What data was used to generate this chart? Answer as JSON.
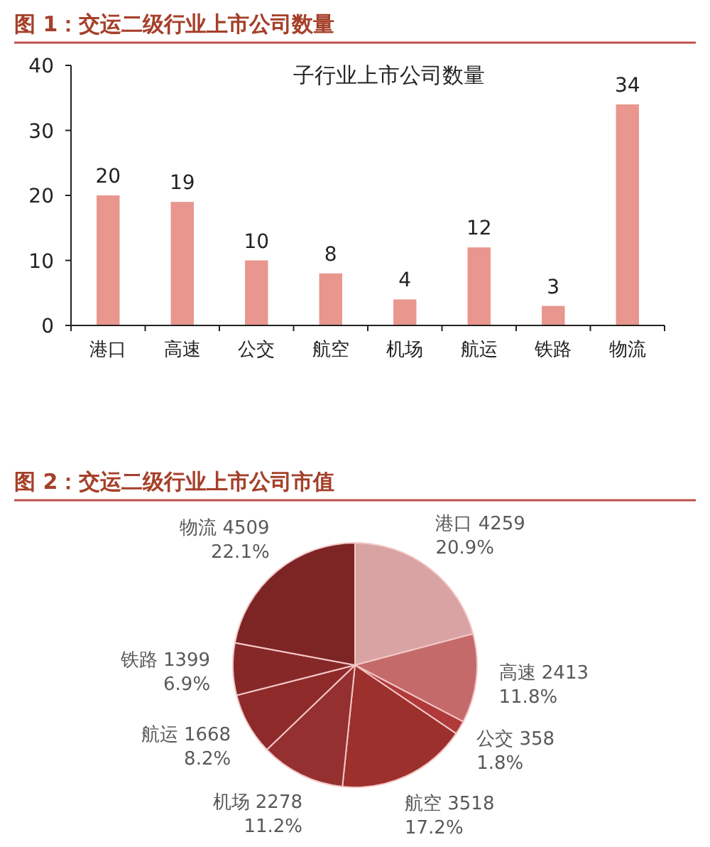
{
  "chart_data": [
    {
      "type": "bar",
      "title": "图 1：交运二级行业上市公司数量",
      "subtitle": "子行业上市公司数量",
      "categories": [
        "港口",
        "高速",
        "公交",
        "航空",
        "机场",
        "航运",
        "铁路",
        "物流"
      ],
      "values": [
        20,
        19,
        10,
        8,
        4,
        12,
        3,
        34
      ],
      "color": "#e8968e",
      "ylim": [
        0,
        40
      ],
      "yticks": [
        0,
        10,
        20,
        30,
        40
      ],
      "data_labels": true
    },
    {
      "type": "pie",
      "title": "图 2：交运二级行业上市公司市值",
      "categories": [
        "港口 4259",
        "高速 2413",
        "公交 358",
        "航空 3518",
        "机场 2278",
        "航运 1668",
        "铁路 1399",
        "物流 4509"
      ],
      "values": [
        20.9,
        11.8,
        1.8,
        17.2,
        11.2,
        8.2,
        6.9,
        22.1
      ],
      "colors": [
        "#d9a3a3",
        "#c46a6a",
        "#b03a3a",
        "#9c302c",
        "#953030",
        "#8e2a2a",
        "#872828",
        "#7d2424"
      ],
      "value_labels": [
        "20.9%",
        "11.8%",
        "1.8%",
        "17.2%",
        "11.2%",
        "8.2%",
        "6.9%",
        "22.1%"
      ]
    }
  ]
}
